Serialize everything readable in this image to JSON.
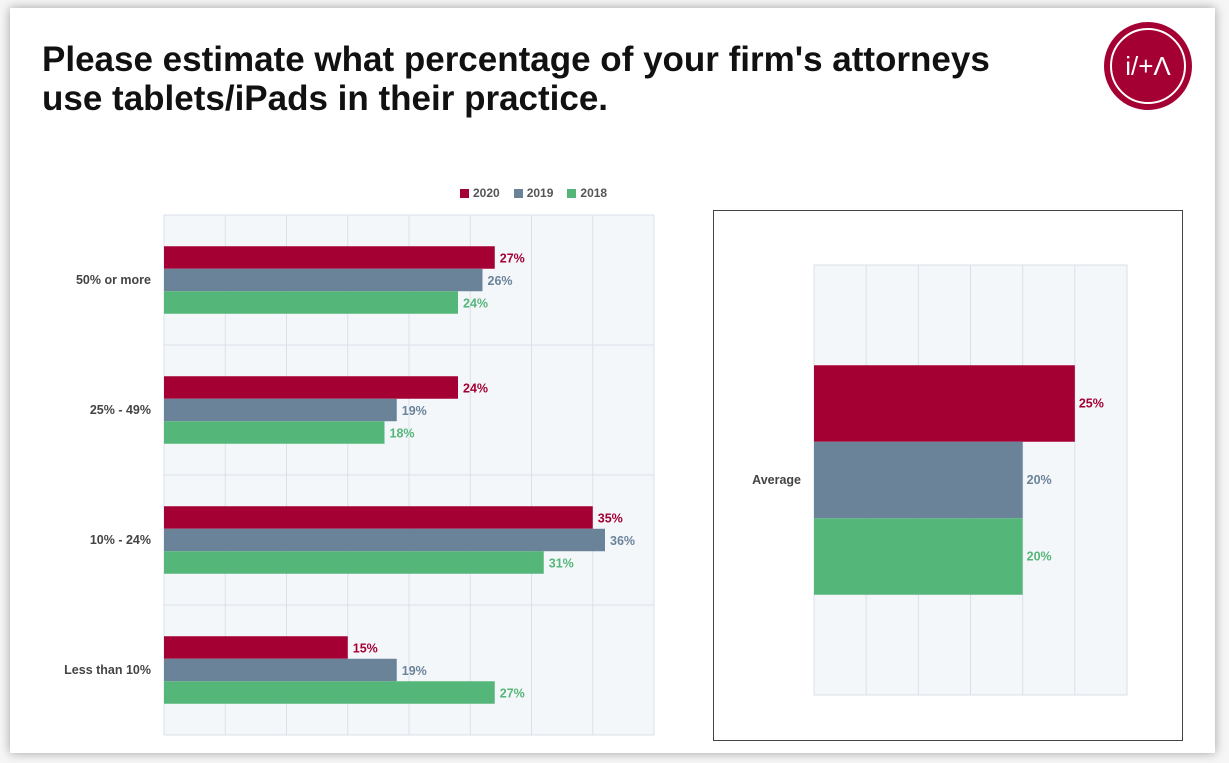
{
  "title": "Please estimate what percentage of your firm's attorneys use tablets/iPads in their practice.",
  "logo": {
    "text": "i/+Λ",
    "icon": "ita-logo-icon"
  },
  "colors": {
    "2020": "#a50034",
    "2019": "#6b8399",
    "2018": "#55b67a"
  },
  "legend": [
    "2020",
    "2019",
    "2018"
  ],
  "chart_data": [
    {
      "type": "bar",
      "orientation": "horizontal",
      "categories": [
        "50% or more",
        "25% - 49%",
        "10% - 24%",
        "Less than 10%"
      ],
      "series": [
        {
          "name": "2020",
          "values": [
            27,
            24,
            35,
            15
          ],
          "labels": [
            "27%",
            "24%",
            "35%",
            "15%"
          ]
        },
        {
          "name": "2019",
          "values": [
            26,
            19,
            36,
            19
          ],
          "labels": [
            "26%",
            "19%",
            "36%",
            "19%"
          ]
        },
        {
          "name": "2018",
          "values": [
            24,
            18,
            31,
            27
          ],
          "labels": [
            "24%",
            "18%",
            "31%",
            "27%"
          ]
        }
      ],
      "xlim": [
        0,
        40
      ],
      "grid": true,
      "legend_position": "top"
    },
    {
      "type": "bar",
      "orientation": "horizontal",
      "categories": [
        "Average"
      ],
      "series": [
        {
          "name": "2020",
          "values": [
            25
          ],
          "labels": [
            "25%"
          ]
        },
        {
          "name": "2019",
          "values": [
            20
          ],
          "labels": [
            "20%"
          ]
        },
        {
          "name": "2018",
          "values": [
            20
          ],
          "labels": [
            "20%"
          ]
        }
      ],
      "xlim": [
        0,
        30
      ],
      "grid": true
    }
  ]
}
